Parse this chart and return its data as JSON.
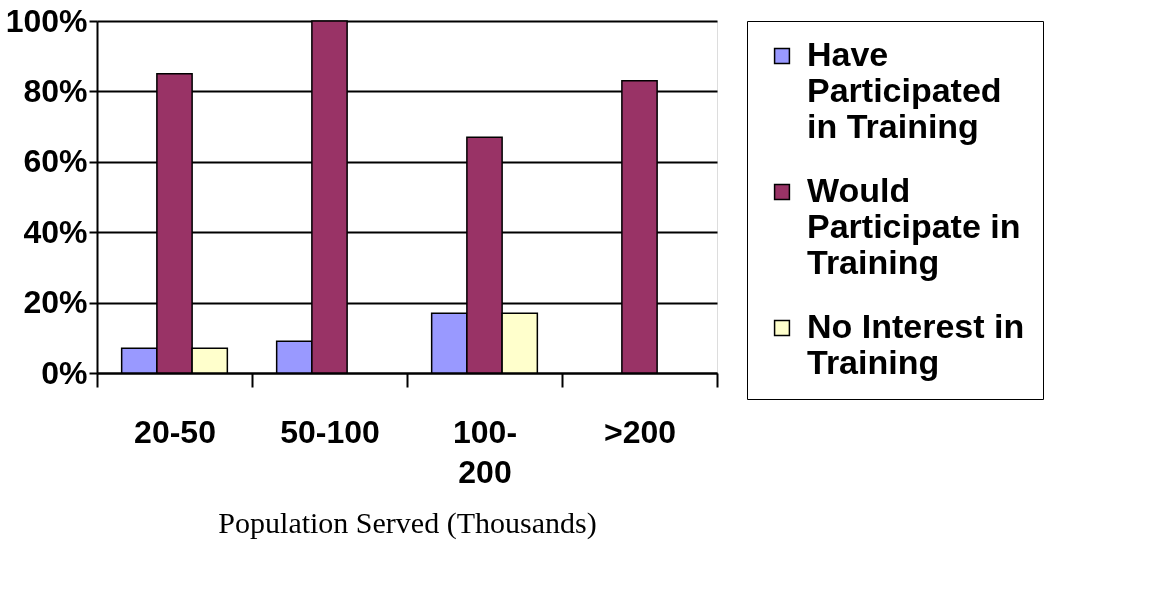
{
  "chart_data": {
    "type": "bar",
    "xlabel": "Population Served (Thousands)",
    "categories": [
      "20-50",
      "50-100",
      "100-200",
      ">200"
    ],
    "series": [
      {
        "name": "Have Participated in Training",
        "color": "#9999ff",
        "values": [
          7,
          9,
          17,
          null
        ]
      },
      {
        "name": "Would Participate in Training",
        "color": "#993366",
        "values": [
          85,
          100,
          67,
          83
        ]
      },
      {
        "name": "No Interest in Training",
        "color": "#ffffcc",
        "values": [
          7,
          null,
          17,
          null
        ]
      }
    ],
    "ylim": [
      0,
      100
    ],
    "yticks": [
      {
        "value": 0,
        "label": "0%"
      },
      {
        "value": 20,
        "label": "20%"
      },
      {
        "value": 40,
        "label": "40%"
      },
      {
        "value": 60,
        "label": "60%"
      },
      {
        "value": 80,
        "label": "80%"
      },
      {
        "value": 100,
        "label": "100%"
      }
    ],
    "grid": "y",
    "legend": "right"
  }
}
